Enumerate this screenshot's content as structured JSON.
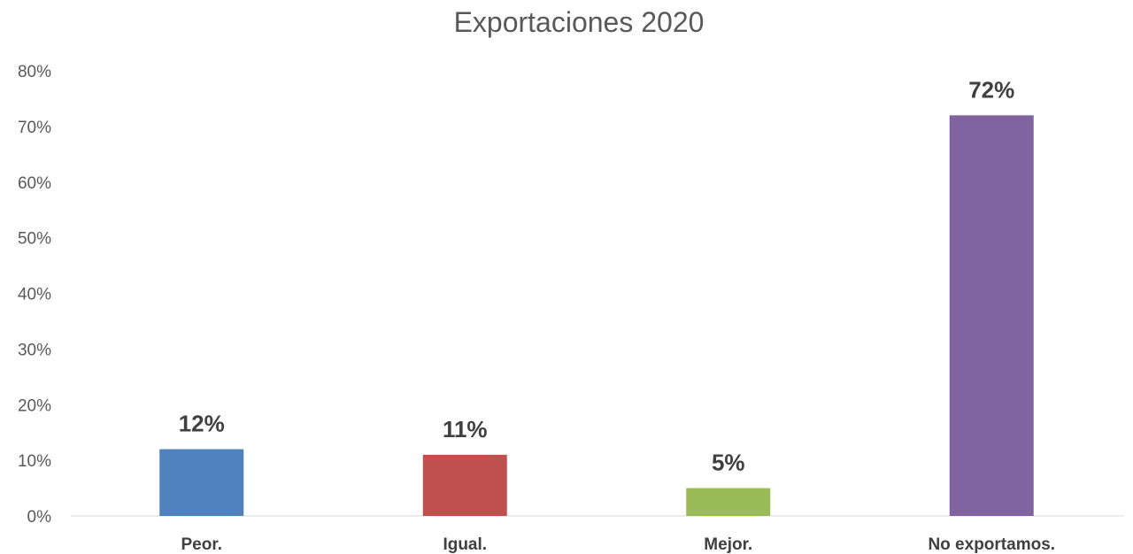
{
  "chart_data": {
    "type": "bar",
    "title": "Exportaciones 2020",
    "xlabel": "",
    "ylabel": "",
    "categories": [
      "Peor.",
      "Igual.",
      "Mejor.",
      "No exportamos."
    ],
    "values": [
      12,
      11,
      5,
      72
    ],
    "data_labels": [
      "12%",
      "11%",
      "5%",
      "72%"
    ],
    "colors": [
      "#4f81bd",
      "#c0504d",
      "#9bbb59",
      "#8064a2"
    ],
    "ylim": [
      0,
      80
    ],
    "y_ticks": [
      0,
      10,
      20,
      30,
      40,
      50,
      60,
      70,
      80
    ],
    "y_tick_labels": [
      "0%",
      "10%",
      "20%",
      "30%",
      "40%",
      "50%",
      "60%",
      "70%",
      "80%"
    ],
    "grid": false,
    "legend": "none"
  }
}
